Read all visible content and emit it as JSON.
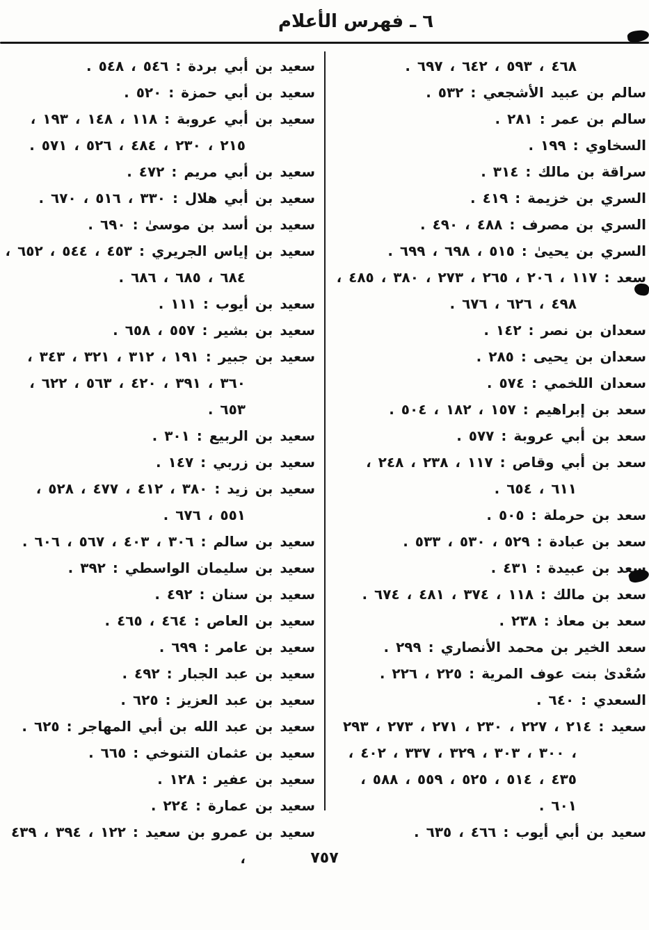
{
  "page": {
    "header": "٦ ـ فهرس الأعلام",
    "page_number": "٧٥٧"
  },
  "index": {
    "punctuation": {
      "separator": ":",
      "joiner": "،",
      "terminator": ".",
      "open_terminator": "،"
    },
    "right_column": [
      {
        "name": "",
        "pages": [
          "٤٦٨",
          "٥٩٣",
          "٦٤٢",
          "٦٩٧"
        ]
      },
      {
        "name": "سالم بن عبيد الأشجعي",
        "pages": [
          "٥٣٢"
        ]
      },
      {
        "name": "سالم بن عمر",
        "pages": [
          "٢٨١"
        ]
      },
      {
        "name": "السخاوي",
        "pages": [
          "١٩٩"
        ]
      },
      {
        "name": "سراقة بن مالك",
        "pages": [
          "٣١٤"
        ]
      },
      {
        "name": "السري بن خزيمة",
        "pages": [
          "٤١٩"
        ]
      },
      {
        "name": "السري بن مصرف",
        "pages": [
          "٤٨٨",
          "٤٩٠"
        ]
      },
      {
        "name": "السري بن يحيىٰ",
        "pages": [
          "٥١٥",
          "٦٩٨",
          "٦٩٩"
        ]
      },
      {
        "name": "سعد",
        "pages": [
          "١١٧",
          "٢٠٦",
          "٢٦٥",
          "٢٧٣",
          "٣٨٠",
          "٤٨٥",
          "٤٩٨",
          "٦٢٦",
          "٦٧٦"
        ]
      },
      {
        "name": "سعدان بن نصر",
        "pages": [
          "١٤٢"
        ]
      },
      {
        "name": "سعدان بن يحيى",
        "pages": [
          "٢٨٥"
        ]
      },
      {
        "name": "سعدان اللخمي",
        "pages": [
          "٥٧٤"
        ]
      },
      {
        "name": "سعد بن إبراهيم",
        "pages": [
          "١٥٧",
          "١٨٢",
          "٥٠٤"
        ]
      },
      {
        "name": "سعد بن أبي عروبة",
        "pages": [
          "٥٧٧"
        ]
      },
      {
        "name": "سعد بن أبي وقاص",
        "pages": [
          "١١٧",
          "٢٣٨",
          "٢٤٨",
          "٦١١",
          "٦٥٤"
        ]
      },
      {
        "name": "سعد بن حرملة",
        "pages": [
          "٥٠٥"
        ]
      },
      {
        "name": "سعد بن عبادة",
        "pages": [
          "٥٢٩",
          "٥٣٠",
          "٥٣٣"
        ]
      },
      {
        "name": "سعد بن عبيدة",
        "pages": [
          "٤٣١"
        ]
      },
      {
        "name": "سعد بن مالك",
        "pages": [
          "١١٨",
          "٣٧٤",
          "٤٨١",
          "٦٧٤"
        ]
      },
      {
        "name": "سعد بن معاذ",
        "pages": [
          "٢٣٨"
        ]
      },
      {
        "name": "سعد الخير بن محمد الأنصاري",
        "pages": [
          "٢٩٩"
        ]
      },
      {
        "name": "سُعْدىٰ بنت عوف المرية",
        "pages": [
          "٢٢٥",
          "٢٢٦"
        ]
      },
      {
        "name": "السعدي",
        "pages": [
          "٦٤٠"
        ]
      },
      {
        "name": "سعيد",
        "pages": [
          "٢١٤",
          "٢٢٧",
          "٢٣٠",
          "٢٧١",
          "٢٧٣",
          "٢٩٣",
          "٣٠٠",
          "٣٠٣",
          "٣٢٩",
          "٣٣٧",
          "٤٠٢",
          "٤٣٥",
          "٥١٤",
          "٥٢٥",
          "٥٥٩",
          "٥٨٨",
          "٦٠١"
        ]
      },
      {
        "name": "سعيد بن أبي أيوب",
        "pages": [
          "٤٦٦",
          "٦٣٥"
        ]
      }
    ],
    "left_column": [
      {
        "name": "سعيد بن أبي بردة",
        "pages": [
          "٥٤٦",
          "٥٤٨"
        ]
      },
      {
        "name": "سعيد بن أبي حمزة",
        "pages": [
          "٥٢٠"
        ]
      },
      {
        "name": "سعيد بن أبي عروبة",
        "pages": [
          "١١٨",
          "١٤٨",
          "١٩٣",
          "٢١٥",
          "٢٣٠",
          "٤٨٤",
          "٥٢٦",
          "٥٧١"
        ]
      },
      {
        "name": "سعيد بن أبي مريم",
        "pages": [
          "٤٧٢"
        ]
      },
      {
        "name": "سعيد بن أبي هلال",
        "pages": [
          "٣٣٠",
          "٥١٦",
          "٦٧٠"
        ]
      },
      {
        "name": "سعيد بن أسد بن موسىٰ",
        "pages": [
          "٦٩٠"
        ]
      },
      {
        "name": "سعيد بن إياس الجريري",
        "pages": [
          "٤٥٣",
          "٥٤٤",
          "٦٥٢",
          "٦٨٤",
          "٦٨٥",
          "٦٨٦"
        ]
      },
      {
        "name": "سعيد بن أيوب",
        "pages": [
          "١١١"
        ]
      },
      {
        "name": "سعيد بن بشير",
        "pages": [
          "٥٥٧",
          "٦٥٨"
        ]
      },
      {
        "name": "سعيد بن جبير",
        "pages": [
          "١٩١",
          "٣١٢",
          "٣٢١",
          "٣٤٣",
          "٣٦٠",
          "٣٩١",
          "٤٢٠",
          "٥٦٣",
          "٦٢٢",
          "٦٥٣"
        ]
      },
      {
        "name": "سعيد بن الربيع",
        "pages": [
          "٣٠١"
        ]
      },
      {
        "name": "سعيد بن زربي",
        "pages": [
          "١٤٧"
        ]
      },
      {
        "name": "سعيد بن زيد",
        "pages": [
          "٣٨٠",
          "٤١٢",
          "٤٧٧",
          "٥٢٨",
          "٥٥١",
          "٦٧٦"
        ]
      },
      {
        "name": "سعيد بن سالم",
        "pages": [
          "٣٠٦",
          "٤٠٣",
          "٥٦٧",
          "٦٠٦"
        ]
      },
      {
        "name": "سعيد بن سليمان الواسطي",
        "pages": [
          "٣٩٢"
        ]
      },
      {
        "name": "سعيد بن سنان",
        "pages": [
          "٤٩٢"
        ]
      },
      {
        "name": "سعيد بن العاص",
        "pages": [
          "٤٦٤",
          "٤٦٥"
        ]
      },
      {
        "name": "سعيد بن عامر",
        "pages": [
          "٦٩٩"
        ]
      },
      {
        "name": "سعيد بن عبد الجبار",
        "pages": [
          "٤٩٢"
        ]
      },
      {
        "name": "سعيد بن عبد العزيز",
        "pages": [
          "٦٢٥"
        ]
      },
      {
        "name": "سعيد بن عبد الله بن أبي المهاجر",
        "pages": [
          "٦٢٥"
        ]
      },
      {
        "name": "سعيد بن عثمان التنوخي",
        "pages": [
          "٦٦٥"
        ]
      },
      {
        "name": "سعيد بن عفير",
        "pages": [
          "١٢٨"
        ]
      },
      {
        "name": "سعيد بن عمارة",
        "pages": [
          "٢٢٤"
        ]
      },
      {
        "name": "سعيد بن عمرو بن سعيد",
        "pages": [
          "١٢٢",
          "٣٩٤",
          "٤٣٩"
        ],
        "open": true
      }
    ]
  }
}
